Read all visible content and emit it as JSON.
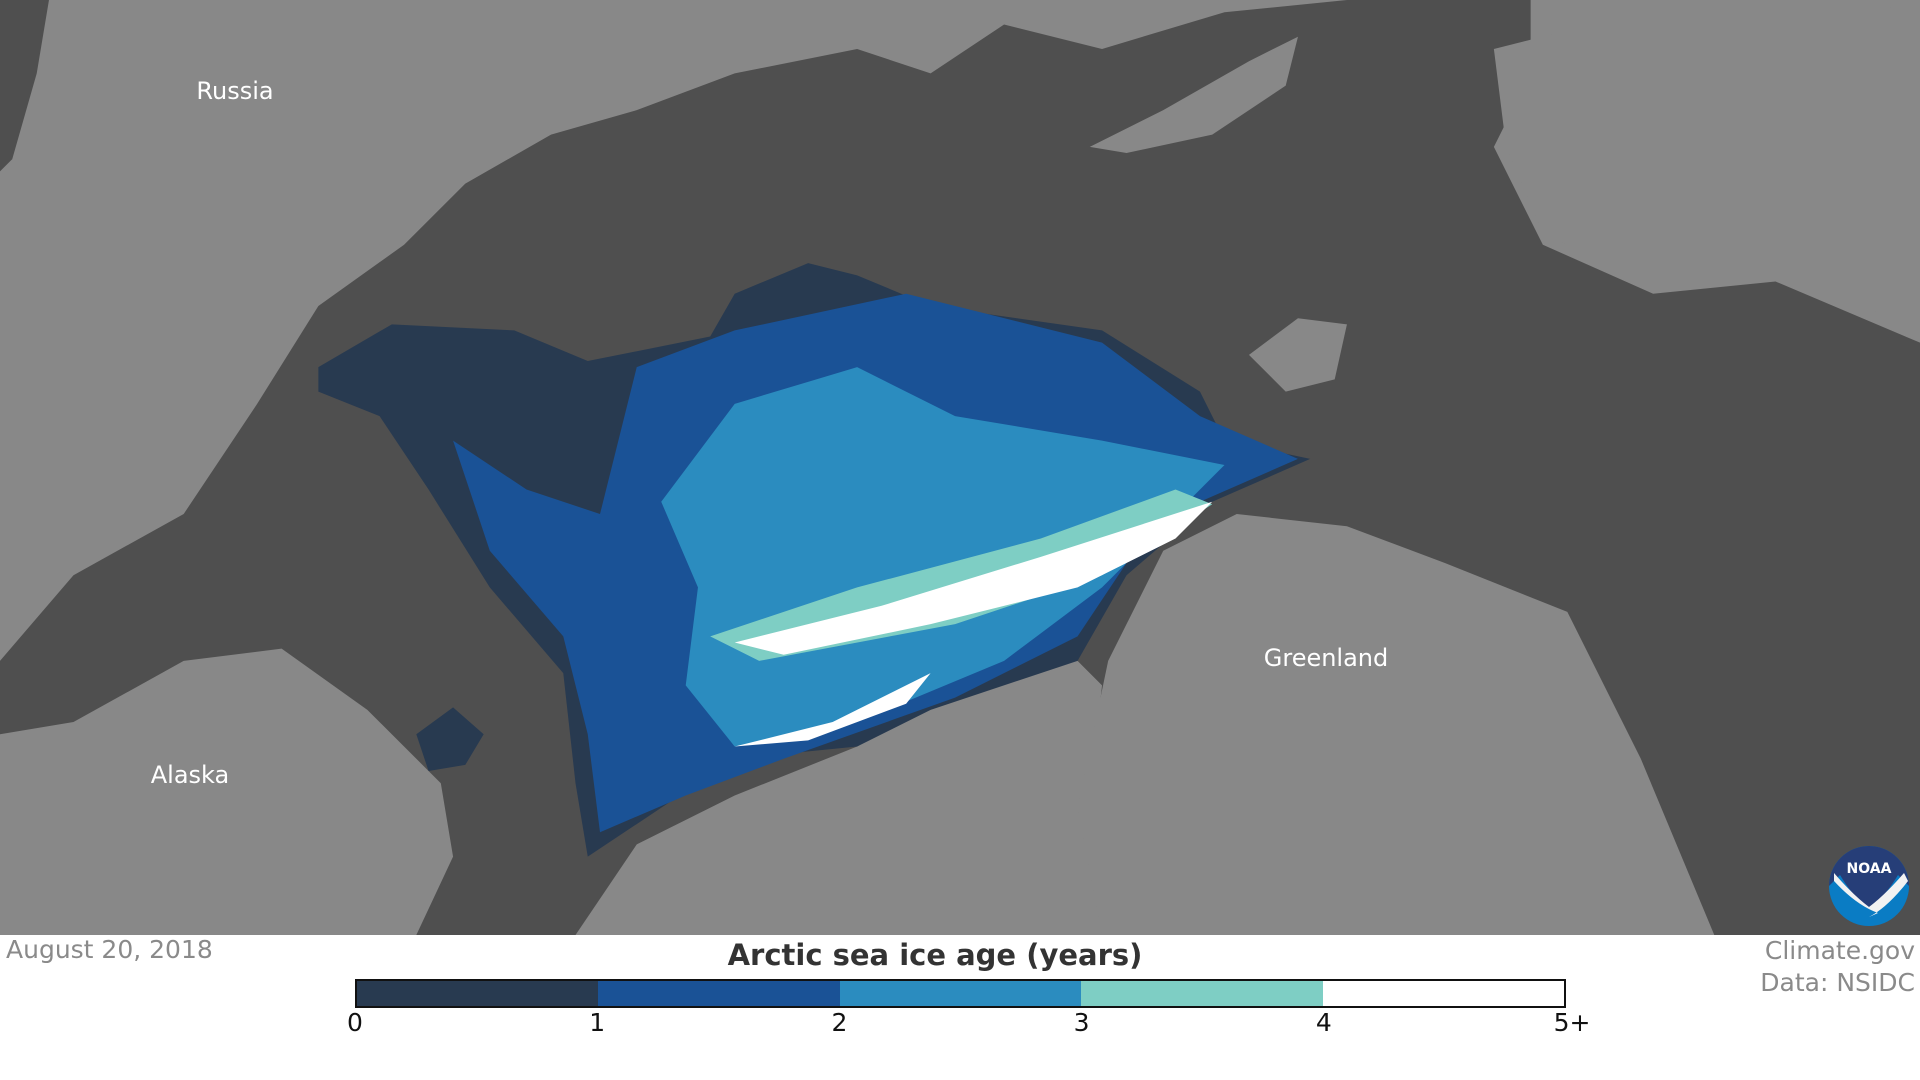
{
  "map": {
    "labels": {
      "russia": "Russia",
      "alaska": "Alaska",
      "greenland": "Greenland"
    },
    "colors": {
      "ocean": "#4f4f4f",
      "land": "#888888"
    }
  },
  "date": "August 20, 2018",
  "credit": {
    "site": "Climate.gov",
    "data": "Data: NSIDC"
  },
  "logo": "NOAA",
  "legend": {
    "title": "Arctic sea ice age (years)",
    "ticks": [
      "0",
      "1",
      "2",
      "3",
      "4",
      "5+"
    ],
    "colors": [
      "#283a50",
      "#1a5296",
      "#2b8cbf",
      "#7ecec4",
      "#ffffff"
    ]
  }
}
